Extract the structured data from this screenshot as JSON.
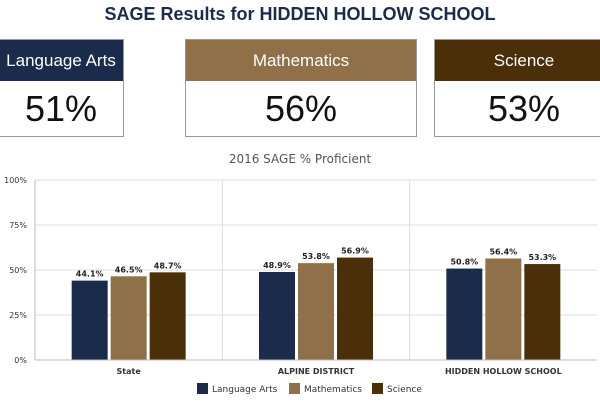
{
  "header": {
    "title": "SAGE Results for HIDDEN HOLLOW SCHOOL"
  },
  "cards": [
    {
      "label": "Language Arts",
      "value": "51%"
    },
    {
      "label": "Mathematics",
      "value": "56%"
    },
    {
      "label": "Science",
      "value": "53%"
    }
  ],
  "chart_data": {
    "type": "bar",
    "title": "2016 SAGE % Proficient",
    "categories": [
      "State",
      "ALPINE DISTRICT",
      "HIDDEN HOLLOW SCHOOL"
    ],
    "series": [
      {
        "name": "Language Arts",
        "values": [
          44.1,
          48.9,
          50.8
        ],
        "labels": [
          "44.1%",
          "48.9%",
          "50.8%"
        ],
        "color": "#1b2b4b"
      },
      {
        "name": "Mathematics",
        "values": [
          46.5,
          53.8,
          56.4
        ],
        "labels": [
          "46.5%",
          "53.8%",
          "56.4%"
        ],
        "color": "#8f7048"
      },
      {
        "name": "Science",
        "values": [
          48.7,
          56.9,
          53.3
        ],
        "labels": [
          "48.7%",
          "56.9%",
          "53.3%"
        ],
        "color": "#4a2f09"
      }
    ],
    "ylim": [
      0,
      100
    ],
    "yticks": [
      "0%",
      "25%",
      "50%",
      "75%",
      "100%"
    ],
    "grid": true,
    "legend": "bottom"
  }
}
